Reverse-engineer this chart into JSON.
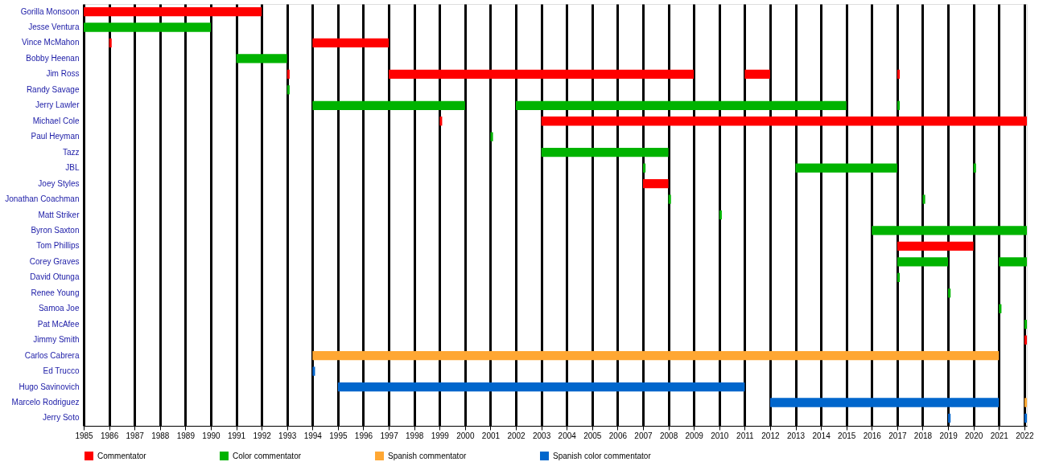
{
  "chart_data": {
    "type": "bar",
    "orientation": "horizontal",
    "categories": [
      "Gorilla Monsoon",
      "Jesse Ventura",
      "Vince McMahon",
      "Bobby Heenan",
      "Jim Ross",
      "Randy Savage",
      "Jerry Lawler",
      "Michael Cole",
      "Paul Heyman",
      "Tazz",
      "JBL",
      "Joey Styles",
      "Jonathan Coachman",
      "Matt Striker",
      "Byron Saxton",
      "Tom Phillips",
      "Corey Graves",
      "David Otunga",
      "Renee Young",
      "Samoa Joe",
      "Pat McAfee",
      "Jimmy Smith",
      "Carlos Cabrera",
      "Ed Trucco",
      "Hugo Savinovich",
      "Marcelo Rodriguez",
      "Jerry Soto"
    ],
    "series": [
      {
        "name": "Commentator",
        "color": "#ff0000",
        "base": [
          1985,
          null,
          1986,
          null,
          1993,
          null,
          null,
          1999,
          null,
          null,
          null,
          2007,
          null,
          null,
          null,
          2017,
          null,
          null,
          null,
          null,
          null,
          2022,
          null,
          null,
          null,
          null,
          null
        ],
        "values": [
          7.0,
          null,
          0.1,
          null,
          0.1,
          null,
          null,
          0.1,
          null,
          null,
          null,
          1.0,
          null,
          null,
          null,
          3.0,
          null,
          null,
          null,
          null,
          null,
          0.1,
          null,
          null,
          null,
          null,
          null
        ]
      },
      {
        "color": "#ff0000",
        "base": [
          null,
          null,
          1994,
          null,
          1997,
          null,
          null,
          2003,
          null,
          null,
          null,
          null,
          null,
          null,
          null,
          null,
          null,
          null,
          null,
          null,
          null,
          null,
          null,
          null,
          null,
          null,
          null
        ],
        "values": [
          null,
          null,
          3.0,
          null,
          12.0,
          null,
          null,
          19.1,
          null,
          null,
          null,
          null,
          null,
          null,
          null,
          null,
          null,
          null,
          null,
          null,
          null,
          null,
          null,
          null,
          null,
          null,
          null
        ]
      },
      {
        "color": "#ff0000",
        "base": [
          null,
          null,
          null,
          null,
          2011,
          null,
          null,
          null,
          null,
          null,
          null,
          null,
          null,
          null,
          null,
          null,
          null,
          null,
          null,
          null,
          null,
          null,
          null,
          null,
          null,
          null,
          null
        ],
        "values": [
          null,
          null,
          null,
          null,
          1.0,
          null,
          null,
          null,
          null,
          null,
          null,
          null,
          null,
          null,
          null,
          null,
          null,
          null,
          null,
          null,
          null,
          null,
          null,
          null,
          null,
          null,
          null
        ]
      },
      {
        "color": "#ff0000",
        "base": [
          null,
          null,
          null,
          null,
          2017,
          null,
          null,
          null,
          null,
          null,
          null,
          null,
          null,
          null,
          null,
          null,
          null,
          null,
          null,
          null,
          null,
          null,
          null,
          null,
          null,
          null,
          null
        ],
        "values": [
          null,
          null,
          null,
          null,
          0.1,
          null,
          null,
          null,
          null,
          null,
          null,
          null,
          null,
          null,
          null,
          null,
          null,
          null,
          null,
          null,
          null,
          null,
          null,
          null,
          null,
          null,
          null
        ]
      },
      {
        "name": "Color commentator",
        "color": "#00b300",
        "base": [
          null,
          1985,
          null,
          1991,
          null,
          1993,
          1994,
          null,
          2001,
          2003,
          2007,
          null,
          2008,
          2010,
          2016,
          null,
          2017,
          2017,
          2019,
          2021,
          2022,
          null,
          null,
          null,
          null,
          null,
          null
        ],
        "values": [
          null,
          5.0,
          null,
          2.0,
          null,
          0.1,
          6.0,
          null,
          0.1,
          5.0,
          0.1,
          null,
          0.1,
          0.1,
          6.1,
          null,
          2.0,
          0.1,
          0.1,
          0.1,
          0.1,
          null,
          null,
          null,
          null,
          null,
          null
        ]
      },
      {
        "color": "#00b300",
        "base": [
          null,
          null,
          null,
          null,
          null,
          null,
          2002,
          null,
          null,
          null,
          2013,
          null,
          2018,
          null,
          null,
          null,
          2021,
          null,
          null,
          null,
          null,
          null,
          null,
          null,
          null,
          null,
          null
        ],
        "values": [
          null,
          null,
          null,
          null,
          null,
          null,
          13.0,
          null,
          null,
          null,
          4.0,
          null,
          0.1,
          null,
          null,
          null,
          1.1,
          null,
          null,
          null,
          null,
          null,
          null,
          null,
          null,
          null,
          null
        ]
      },
      {
        "color": "#00b300",
        "base": [
          null,
          null,
          null,
          null,
          null,
          null,
          2017,
          null,
          null,
          null,
          2020,
          null,
          null,
          null,
          null,
          null,
          null,
          null,
          null,
          null,
          null,
          null,
          null,
          null,
          null,
          null,
          null
        ],
        "values": [
          null,
          null,
          null,
          null,
          null,
          null,
          0.1,
          null,
          null,
          null,
          0.1,
          null,
          null,
          null,
          null,
          null,
          null,
          null,
          null,
          null,
          null,
          null,
          null,
          null,
          null,
          null,
          null
        ]
      },
      {
        "name": "Spanish commentator",
        "color": "#ffa733",
        "base": [
          null,
          null,
          null,
          null,
          null,
          null,
          null,
          null,
          null,
          null,
          null,
          null,
          null,
          null,
          null,
          null,
          null,
          null,
          null,
          null,
          null,
          null,
          1994,
          null,
          null,
          2022,
          null
        ],
        "values": [
          null,
          null,
          null,
          null,
          null,
          null,
          null,
          null,
          null,
          null,
          null,
          null,
          null,
          null,
          null,
          null,
          null,
          null,
          null,
          null,
          null,
          null,
          27.0,
          null,
          null,
          0.1,
          null
        ]
      },
      {
        "name": "Spanish color commentator",
        "color": "#0066cc",
        "base": [
          null,
          null,
          null,
          null,
          null,
          null,
          null,
          null,
          null,
          null,
          null,
          null,
          null,
          null,
          null,
          null,
          null,
          null,
          null,
          null,
          null,
          null,
          null,
          1994,
          1995,
          2012,
          2019
        ],
        "values": [
          null,
          null,
          null,
          null,
          null,
          null,
          null,
          null,
          null,
          null,
          null,
          null,
          null,
          null,
          null,
          null,
          null,
          null,
          null,
          null,
          null,
          null,
          null,
          0.1,
          16.0,
          9.0,
          0.1
        ]
      },
      {
        "color": "#0066cc",
        "base": [
          null,
          null,
          null,
          null,
          null,
          null,
          null,
          null,
          null,
          null,
          null,
          null,
          null,
          null,
          null,
          null,
          null,
          null,
          null,
          null,
          null,
          null,
          null,
          null,
          null,
          null,
          2022
        ],
        "values": [
          null,
          null,
          null,
          null,
          null,
          null,
          null,
          null,
          null,
          null,
          null,
          null,
          null,
          null,
          null,
          null,
          null,
          null,
          null,
          null,
          null,
          null,
          null,
          null,
          null,
          null,
          0.1
        ]
      }
    ],
    "xlim": [
      1985,
      2022.1
    ],
    "xticks": [
      1985,
      1986,
      1987,
      1988,
      1989,
      1990,
      1991,
      1992,
      1993,
      1994,
      1995,
      1996,
      1997,
      1998,
      1999,
      2000,
      2001,
      2002,
      2003,
      2004,
      2005,
      2006,
      2007,
      2008,
      2009,
      2010,
      2011,
      2012,
      2013,
      2014,
      2015,
      2016,
      2017,
      2018,
      2019,
      2020,
      2021,
      2022
    ],
    "grid": "x",
    "legend": "bottom"
  }
}
